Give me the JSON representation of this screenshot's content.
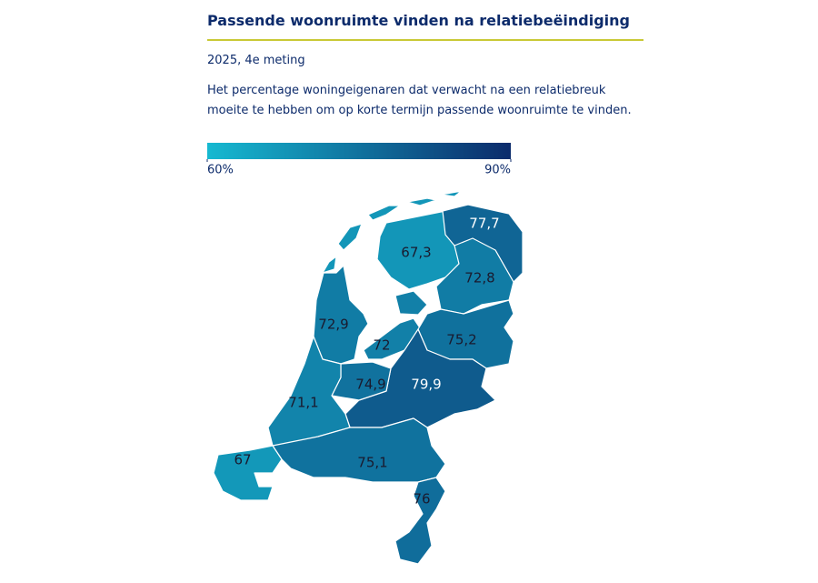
{
  "chart_data": {
    "type": "choropleth",
    "title": "Passende woonruimte vinden na relatiebeëindiging",
    "subtitle": "2025, 4e meting",
    "description": "Het percentage woningeigenaren dat verwacht na een relatiebreuk moeite te hebben om op korte termijn passende woonruimte te vinden.",
    "colorlim": [
      60,
      90
    ],
    "colorticks": [
      {
        "value": 60,
        "label": "60%"
      },
      {
        "value": 90,
        "label": "90%"
      }
    ],
    "colors": [
      "#16b9d1",
      "#0b2b6b"
    ],
    "values": [
      67.3,
      77.7,
      72.8,
      72.9,
      72,
      75.2,
      79.9,
      74.9,
      71.1,
      67,
      75.1,
      76
    ],
    "value_labels": [
      "67,3",
      "77,7",
      "72,8",
      "72,9",
      "72",
      "75,2",
      "79,9",
      "74,9",
      "71,1",
      "67",
      "75,1",
      "76"
    ]
  }
}
